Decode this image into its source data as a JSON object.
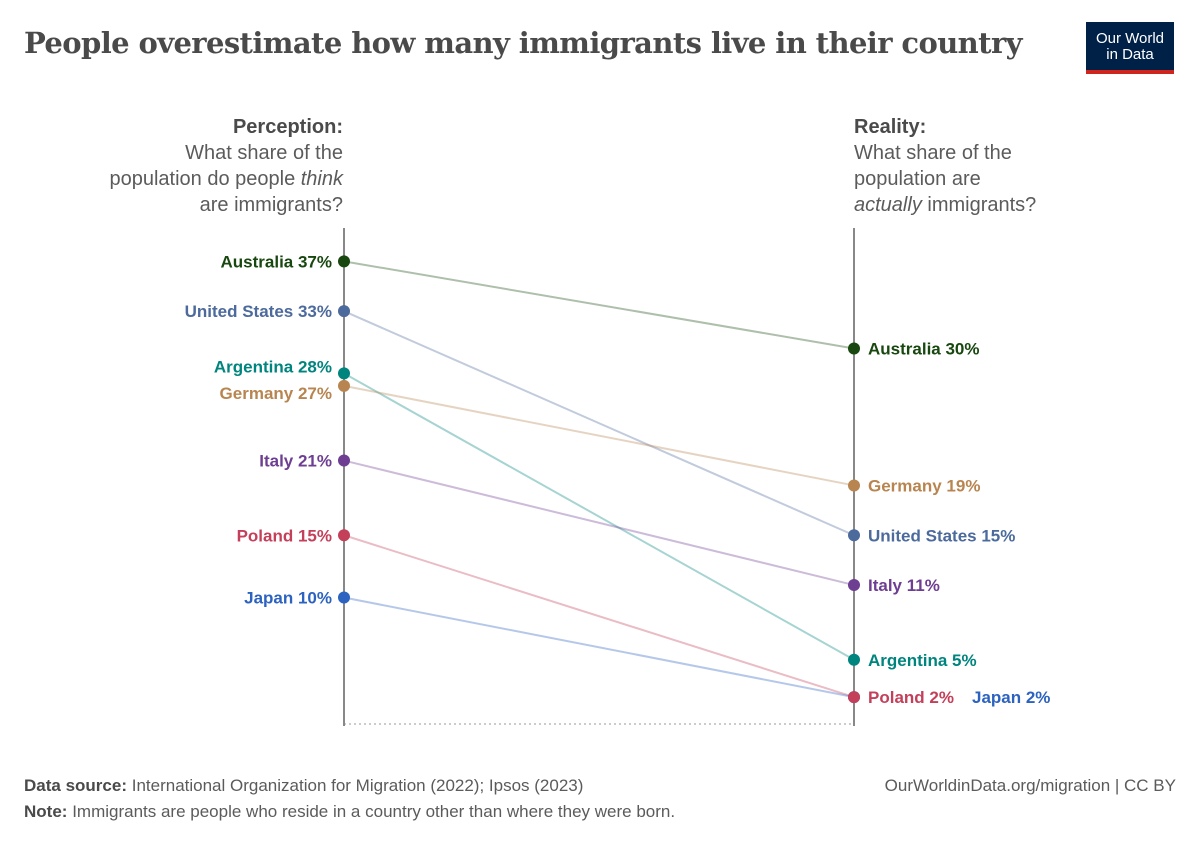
{
  "title": "People overestimate how many immigrants live in their country",
  "logo": {
    "line1": "Our World",
    "line2": "in Data"
  },
  "chart_data": {
    "type": "slope",
    "left_axis": {
      "heading": "Perception:",
      "subtitle_pre": "What share of the population do people ",
      "subtitle_em": "think",
      "subtitle_post": " are immigrants?"
    },
    "right_axis": {
      "heading": "Reality:",
      "subtitle_pre": "What share of the population are ",
      "subtitle_em": "actually",
      "subtitle_post": " immigrants?"
    },
    "unit": "%",
    "ylim": [
      0,
      40
    ],
    "series": [
      {
        "name": "Australia",
        "perception": 37,
        "reality": 30,
        "color": "#18470f"
      },
      {
        "name": "United States",
        "perception": 33,
        "reality": 15,
        "color": "#4c6a9c"
      },
      {
        "name": "Argentina",
        "perception": 28,
        "reality": 5,
        "color": "#00847e"
      },
      {
        "name": "Germany",
        "perception": 27,
        "reality": 19,
        "color": "#b88550"
      },
      {
        "name": "Italy",
        "perception": 21,
        "reality": 11,
        "color": "#6d3e91"
      },
      {
        "name": "Poland",
        "perception": 15,
        "reality": 2,
        "color": "#c4405a"
      },
      {
        "name": "Japan",
        "perception": 10,
        "reality": 2,
        "color": "#2c62c0"
      }
    ]
  },
  "footer": {
    "source_label": "Data source:",
    "source": "International Organization for Migration (2022); Ipsos (2023)",
    "note_label": "Note:",
    "note": "Immigrants are people who reside in a country other than where they were born.",
    "url": "OurWorldinData.org/migration | CC BY"
  }
}
